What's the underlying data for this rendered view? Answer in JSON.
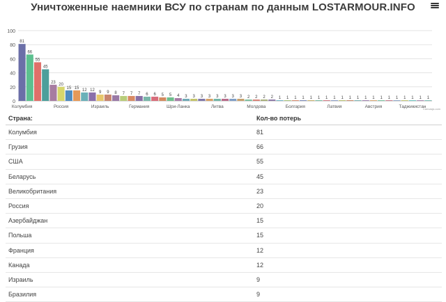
{
  "header": {
    "title": "Уничтоженные наемники ВСУ по странам по данным LOSTARMOUR.INFO",
    "menu_icon": "hamburger-menu-icon"
  },
  "chart_data": {
    "type": "bar",
    "title": "Уничтоженные наемники ВСУ по странам по данным LOSTARMOUR.INFO",
    "xlabel": "",
    "ylabel": "",
    "ylim": [
      0,
      100
    ],
    "yticks": [
      0,
      20,
      40,
      60,
      80,
      100
    ],
    "grid": true,
    "x_tick_labels": [
      "Колумбия",
      "Россия",
      "Израиль",
      "Германия",
      "Шри-Ланка",
      "Литва",
      "Молдова",
      "Болгария",
      "Латвия",
      "Австрия",
      "Таджикистан"
    ],
    "values": [
      81,
      66,
      55,
      45,
      23,
      20,
      15,
      15,
      12,
      12,
      9,
      9,
      8,
      7,
      7,
      7,
      6,
      6,
      5,
      5,
      4,
      3,
      3,
      3,
      3,
      3,
      3,
      3,
      3,
      2,
      2,
      2,
      2,
      1,
      1,
      1,
      1,
      1,
      1,
      1,
      1,
      1,
      1,
      1,
      1,
      1,
      1,
      1,
      1,
      1,
      1,
      1,
      1
    ],
    "colors": [
      "#6b6fa8",
      "#5cc08f",
      "#e0706a",
      "#4c9f9b",
      "#a77ca1",
      "#d7d66b",
      "#4f8cc0",
      "#e69958",
      "#6ab0b8",
      "#8a6faa",
      "#e7c76c",
      "#c8856e",
      "#9a7aa6",
      "#b8cc79",
      "#d88a64",
      "#8870a6",
      "#79b7a9",
      "#d86d7b",
      "#d48b60",
      "#6fbf8c",
      "#a87ca7",
      "#6fa9b5",
      "#c4c46a",
      "#8078aa",
      "#d7a166",
      "#72b6a8",
      "#b86b8a",
      "#7f9fc7",
      "#c7a06c",
      "#7cc09f",
      "#d88377",
      "#a8b07a",
      "#8f7ba8",
      "#6fb2c4",
      "#a8c37b",
      "#d78a6e",
      "#7a89b8",
      "#c8b06c",
      "#79bba1",
      "#d07b85",
      "#8b9dc4",
      "#b8c070",
      "#c98a6b",
      "#7cb3b3",
      "#9f82ad",
      "#d6a873",
      "#7cc2a0",
      "#c87d8e",
      "#8ea7c8",
      "#c2c475",
      "#6fc4c0",
      "#a88bb0",
      "#7ebfb6"
    ],
    "credit": "Canvasjs.com"
  },
  "table": {
    "headers": [
      "Страна:",
      "Кол-во потерь"
    ],
    "rows": [
      [
        "Колумбия",
        "81"
      ],
      [
        "Грузия",
        "66"
      ],
      [
        "США",
        "55"
      ],
      [
        "Беларусь",
        "45"
      ],
      [
        "Великобритания",
        "23"
      ],
      [
        "Россия",
        "20"
      ],
      [
        "Азербайджан",
        "15"
      ],
      [
        "Польша",
        "15"
      ],
      [
        "Франция",
        "12"
      ],
      [
        "Канада",
        "12"
      ],
      [
        "Израиль",
        "9"
      ],
      [
        "Бразилия",
        "9"
      ]
    ]
  }
}
